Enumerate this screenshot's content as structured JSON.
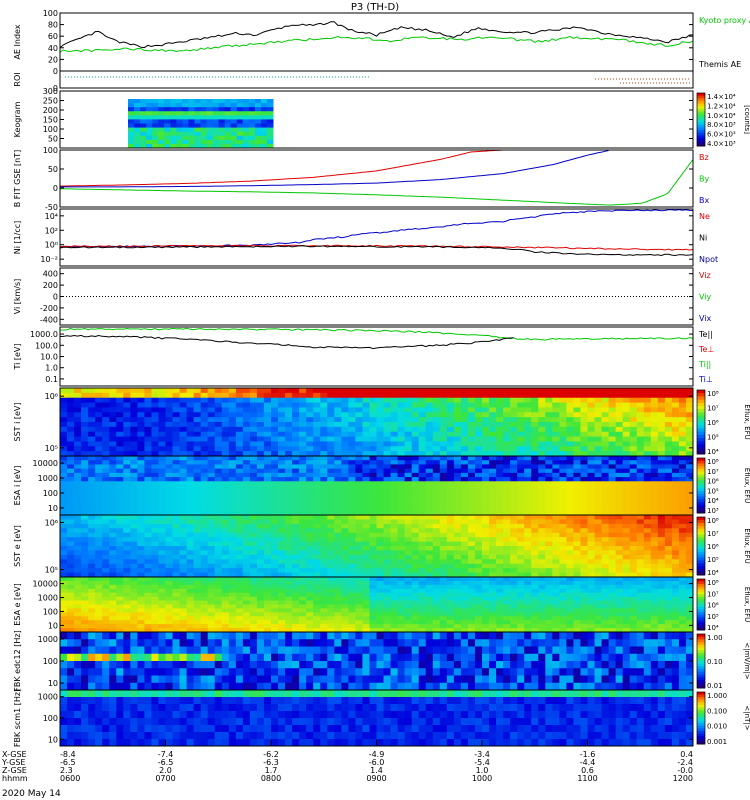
{
  "title": "P3 (TH-D)",
  "date_label": "2020 May 14",
  "colors": {
    "black": "#000000",
    "red": "#e00000",
    "green": "#00c800",
    "blue": "#0000c8",
    "navy": "#0000a0",
    "dot_green": "#00b4a0",
    "dot_red": "#c84000"
  },
  "chart_data": [
    {
      "type": "line",
      "id": "ae",
      "ylabel": "AE Index",
      "ylim": [
        0,
        100
      ],
      "yticks": [
        0,
        20,
        40,
        60,
        80,
        100
      ],
      "legend": [
        "Kyoto proxy AE",
        "Themis AE"
      ],
      "series": [
        {
          "name": "Themis AE",
          "color": "black",
          "x": [
            0,
            0.03,
            0.06,
            0.08,
            0.1,
            0.13,
            0.16,
            0.19,
            0.22,
            0.25,
            0.28,
            0.31,
            0.34,
            0.37,
            0.4,
            0.43,
            0.46,
            0.5,
            0.54,
            0.58,
            0.62,
            0.66,
            0.7,
            0.74,
            0.78,
            0.82,
            0.86,
            0.9,
            0.93,
            0.96,
            0.98,
            1.0
          ],
          "y": [
            42,
            55,
            68,
            55,
            48,
            42,
            45,
            50,
            55,
            60,
            65,
            62,
            72,
            80,
            78,
            85,
            70,
            62,
            75,
            70,
            58,
            74,
            68,
            66,
            70,
            76,
            65,
            60,
            55,
            50,
            56,
            62
          ]
        },
        {
          "name": "Kyoto proxy AE",
          "color": "green",
          "x": [
            0,
            0.05,
            0.1,
            0.15,
            0.2,
            0.24,
            0.28,
            0.32,
            0.36,
            0.4,
            0.44,
            0.48,
            0.52,
            0.56,
            0.6,
            0.64,
            0.68,
            0.72,
            0.76,
            0.8,
            0.84,
            0.88,
            0.92,
            0.96,
            1.0
          ],
          "y": [
            35,
            35,
            38,
            36,
            35,
            40,
            44,
            48,
            52,
            55,
            58,
            56,
            52,
            58,
            56,
            55,
            60,
            54,
            50,
            58,
            56,
            55,
            48,
            44,
            52
          ]
        }
      ]
    },
    {
      "type": "scatter",
      "id": "roi",
      "ylabel": "ROI",
      "ylim": [
        0,
        1
      ],
      "yticks": [
        0
      ]
    },
    {
      "type": "heatmap",
      "id": "keogram",
      "ylabel": "Keogram",
      "ylim": [
        0,
        300
      ],
      "yticks": [
        50,
        100,
        150,
        200,
        250,
        300
      ],
      "colorbar_ticks": [
        "1.4×10⁴",
        "1.2×10⁴",
        "1.0×10⁴",
        "8.0×10³",
        "6.0×10³",
        "4.0×10³"
      ],
      "colorbar_label": "[counts]"
    },
    {
      "type": "line",
      "id": "bfield",
      "ylabel": "B FIT GSE [nT]",
      "ylim": [
        -50,
        100
      ],
      "yticks": [
        -50,
        0,
        50,
        100
      ],
      "legend": [
        "Bz",
        "By",
        "Bx"
      ],
      "series": [
        {
          "name": "Bz",
          "color": "red",
          "x": [
            0,
            0.1,
            0.2,
            0.3,
            0.4,
            0.5,
            0.6,
            0.65,
            0.7
          ],
          "y": [
            5,
            8,
            12,
            18,
            28,
            45,
            75,
            95,
            100
          ]
        },
        {
          "name": "By",
          "color": "green",
          "x": [
            0,
            0.1,
            0.2,
            0.3,
            0.4,
            0.5,
            0.6,
            0.7,
            0.8,
            0.87,
            0.92,
            0.96,
            1.0
          ],
          "y": [
            -2,
            -5,
            -8,
            -10,
            -13,
            -18,
            -24,
            -32,
            -40,
            -45,
            -40,
            -15,
            75
          ]
        },
        {
          "name": "Bx",
          "color": "blue",
          "x": [
            0,
            0.1,
            0.2,
            0.3,
            0.4,
            0.5,
            0.6,
            0.7,
            0.78,
            0.83,
            0.87
          ],
          "y": [
            3,
            3,
            4,
            6,
            9,
            13,
            22,
            38,
            62,
            85,
            100
          ]
        }
      ]
    },
    {
      "type": "line",
      "id": "density",
      "ylabel": "Ni [1/cc]",
      "ylog": true,
      "ylim": [
        0.01,
        10000
      ],
      "yticks": [
        "10⁻²",
        "10⁰",
        "10²",
        "10⁴"
      ],
      "legend": [
        "Ne",
        "Ni",
        "Npot"
      ],
      "series": [
        {
          "name": "Npot",
          "color": "blue",
          "x": [
            0,
            0.15,
            0.3,
            0.38,
            0.45,
            0.52,
            0.6,
            0.7,
            0.75,
            0.8,
            0.85,
            0.9,
            1.0
          ],
          "y": [
            1,
            1.2,
            1.5,
            3,
            12,
            40,
            120,
            500,
            1500,
            4000,
            6000,
            7000,
            8000
          ]
        },
        {
          "name": "Ne",
          "color": "red",
          "x": [
            0,
            0.2,
            0.4,
            0.6,
            0.7,
            0.8,
            0.9,
            1.0
          ],
          "y": [
            1.2,
            1.3,
            1.4,
            1.2,
            1.0,
            0.8,
            0.6,
            0.5
          ]
        },
        {
          "name": "Ni",
          "color": "black",
          "x": [
            0,
            0.2,
            0.4,
            0.6,
            0.7,
            0.75,
            0.8,
            0.9,
            1.0
          ],
          "y": [
            0.9,
            1.0,
            1.2,
            1.0,
            0.8,
            0.3,
            0.2,
            0.15,
            0.15
          ]
        }
      ]
    },
    {
      "type": "line",
      "id": "velocity",
      "ylabel": "Vi [km/s]",
      "ylim": [
        -500,
        500
      ],
      "yticks": [
        -400,
        -200,
        0,
        200,
        400
      ],
      "legend": [
        "Viz",
        "Viy",
        "Vix"
      ]
    },
    {
      "type": "line",
      "id": "temperature",
      "ylabel": "Ti [eV]",
      "ylog": true,
      "ylim": [
        0.05,
        3000
      ],
      "yticks": [
        "0.1",
        "1.0",
        "10.0",
        "100.0",
        "1000.0"
      ],
      "legend": [
        "Te||",
        "Te⊥",
        "Ti||",
        "Ti⊥"
      ],
      "series": [
        {
          "name": "Ti||",
          "color": "green",
          "x": [
            0,
            0.2,
            0.4,
            0.5,
            0.55,
            0.6,
            0.65,
            0.7,
            0.75,
            0.8,
            0.9,
            1.0
          ],
          "y": [
            2000,
            2100,
            1800,
            1500,
            1300,
            1000,
            700,
            400,
            300,
            320,
            350,
            380
          ]
        },
        {
          "name": "Te||",
          "color": "black",
          "x": [
            0,
            0.1,
            0.2,
            0.3,
            0.4,
            0.5,
            0.55,
            0.6,
            0.65,
            0.7,
            0.72
          ],
          "y": [
            600,
            500,
            300,
            150,
            70,
            60,
            80,
            100,
            150,
            300,
            400
          ]
        }
      ]
    },
    {
      "type": "heatmap",
      "id": "sst_ion",
      "ylabel": "SST i [eV]",
      "ylog": true,
      "yticks": [
        "10⁵",
        "10⁶"
      ],
      "colorbar_ticks": [
        "10⁸",
        "10⁷",
        "10⁶",
        "10⁵",
        "10⁴"
      ],
      "colorbar_label": "Eflux, EFU"
    },
    {
      "type": "heatmap",
      "id": "esa_ion",
      "ylabel": "ESA i [eV]",
      "ylog": true,
      "yticks": [
        "10",
        "100",
        "1000",
        "10000"
      ],
      "colorbar_ticks": [
        "10⁸",
        "10⁷",
        "10⁶",
        "10⁵",
        "10⁴",
        "10³"
      ],
      "colorbar_label": "Eflux, EFU"
    },
    {
      "type": "heatmap",
      "id": "sst_elec",
      "ylabel": "SST e [eV]",
      "ylog": true,
      "yticks": [
        "10⁵",
        "10⁶"
      ],
      "colorbar_ticks": [
        "10⁸",
        "10⁷",
        "10⁶",
        "10⁵",
        "10⁴"
      ],
      "colorbar_label": "Eflux, EFU"
    },
    {
      "type": "heatmap",
      "id": "esa_elec",
      "ylabel": "ESA e [eV]",
      "ylog": true,
      "yticks": [
        "10",
        "100",
        "1000",
        "10000"
      ],
      "colorbar_ticks": [
        "10⁸",
        "10⁷",
        "10⁶",
        "10⁵",
        "10⁴"
      ],
      "colorbar_label": "Eflux, EFU"
    },
    {
      "type": "heatmap",
      "id": "fbk_edc12",
      "ylabel": "FBK edc12 [Hz]",
      "ylog": true,
      "yticks": [
        "10",
        "100",
        "1000"
      ],
      "colorbar_ticks": [
        "1.00",
        "0.10",
        "0.01"
      ],
      "colorbar_label": "<|mV/m|>"
    },
    {
      "type": "heatmap",
      "id": "fbk_scm1",
      "ylabel": "FBK scm1 [Hz]",
      "ylog": true,
      "yticks": [
        "10",
        "100",
        "1000"
      ],
      "colorbar_ticks": [
        "1.000",
        "0.100",
        "0.010",
        "0.001"
      ],
      "colorbar_label": "<|nT|>"
    }
  ],
  "axis": {
    "row_labels": [
      "X-GSE",
      "Y-GSE",
      "Z-GSE",
      "hhmm"
    ],
    "ticks": [
      {
        "x": "-8.4",
        "y": "-6.5",
        "z": "2.3",
        "t": "0600"
      },
      {
        "x": "-7.4",
        "y": "-6.5",
        "z": "2.0",
        "t": "0700"
      },
      {
        "x": "-6.2",
        "y": "-6.3",
        "z": "1.7",
        "t": "0800"
      },
      {
        "x": "-4.9",
        "y": "-6.0",
        "z": "1.4",
        "t": "0900"
      },
      {
        "x": "-3.4",
        "y": "-5.4",
        "z": "1.0",
        "t": "1000"
      },
      {
        "x": "-1.6",
        "y": "-4.4",
        "z": "0.6",
        "t": "1100"
      },
      {
        "x": "0.4",
        "y": "-2.4",
        "z": "-0.0",
        "t": "1200"
      }
    ]
  }
}
